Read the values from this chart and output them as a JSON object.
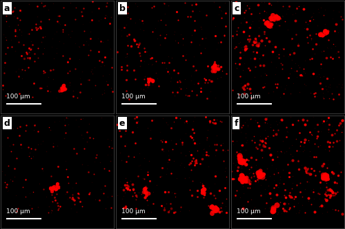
{
  "panels": [
    "a",
    "b",
    "c",
    "d",
    "e",
    "f"
  ],
  "nrows": 2,
  "ncols": 3,
  "bg_color": "#000000",
  "fig_bg_color": "#000000",
  "label_bg": "#ffffff",
  "label_color": "#000000",
  "dot_color_bright": "#ff0000",
  "dot_color_mid": "#cc0000",
  "dot_color_dark": "#660000",
  "scale_bar_color": "#ffffff",
  "scale_bar_text": "100 μm",
  "scale_bar_text_color": "#ffffff",
  "label_fontsize": 9,
  "scale_fontsize": 6.5,
  "figsize": [
    5.0,
    3.33
  ],
  "dpi": 100,
  "seeds": [
    42,
    123,
    7,
    55,
    88,
    200
  ],
  "n_scatter": [
    200,
    180,
    280,
    150,
    220,
    350
  ],
  "n_large_blobs": [
    1,
    2,
    3,
    1,
    3,
    5
  ],
  "intensity_scale": [
    0.6,
    0.7,
    1.0,
    0.5,
    0.85,
    1.2
  ]
}
